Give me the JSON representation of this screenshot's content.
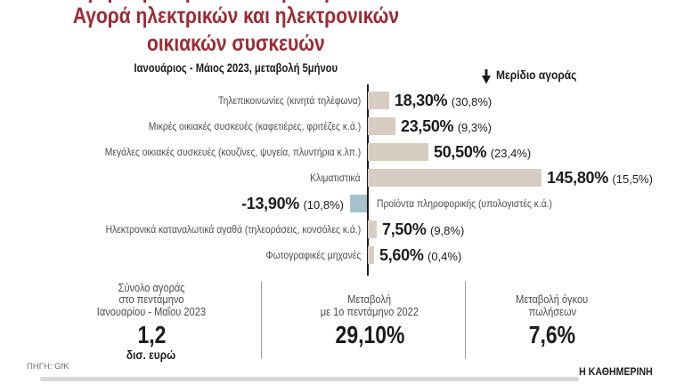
{
  "header": {
    "title_line1": "Αγορά ηλεκτρικών και ηλεκτρονικών",
    "title_line2": "οικιακών συσκευών",
    "subtitle": "Ιανουάριος - Μάιος 2023, μεταβολή 5μήνου",
    "legend_note": "Μερίδιο αγοράς"
  },
  "colors": {
    "title_red": "#9c2a32",
    "bar_positive": "#d7cdc2",
    "bar_negative": "#a6c2cc",
    "label_gray": "#4c4c4e",
    "footer_bar_gray": "#d8d8d8"
  },
  "chart_data": {
    "type": "bar",
    "orientation": "horizontal",
    "title": "Αγορά ηλεκτρικών και ηλεκτρονικών οικιακών συσκευών",
    "subtitle": "Ιανουάριος - Μάιος 2023, μεταβολή 5μήνου",
    "legend_position": "top-right",
    "xlim": [
      -20,
      160
    ],
    "grid": false,
    "categories": [
      "Τηλεπικοινωνίες (κινητά τηλέφωνα)",
      "Μικρές οικιακές συσκευές (καφετιέρες, φριτέζες κ.ά.)",
      "Μεγάλες οικιακές συσκευές (κουζίνες, ψυγεία, πλυντήρια κ.λπ.)",
      "Κλιματιστικά",
      "Προϊόντα πληροφορικής (υπολογιστές κ.ά.)",
      "Ηλεκτρονικά καταναλωτικά αγαθά (τηλεοράσεις, κονσόλες κ.ά.)",
      "Φωτογραφικές μηχανές"
    ],
    "series": [
      {
        "name": "Μεταβολή 5μήνου",
        "values": [
          18.3,
          23.5,
          50.5,
          145.8,
          -13.9,
          7.5,
          5.6
        ],
        "labels": [
          "18,30%",
          "23,50%",
          "50,50%",
          "145,80%",
          "-13,90%",
          "7,50%",
          "5,60%"
        ]
      },
      {
        "name": "Μερίδιο αγοράς",
        "values": [
          30.8,
          9.3,
          23.4,
          15.5,
          10.8,
          9.8,
          0.4
        ],
        "labels": [
          "(30,8%)",
          "(9,3%)",
          "(23,4%)",
          "(15,5%)",
          "(10,8%)",
          "(9,8%)",
          "(0,4%)"
        ]
      }
    ]
  },
  "stats": [
    {
      "lines": [
        "Σύνολο αγοράς",
        "στο πεντάμηνο",
        "Ιανουαρίου - Μαΐου 2023"
      ],
      "value": "1,2",
      "unit": "δισ. ευρώ"
    },
    {
      "lines": [
        "Μεταβολή",
        "με 1ο πεντάμηνο 2022"
      ],
      "value": "29,10%"
    },
    {
      "lines": [
        "Μεταβολή όγκου",
        "πωλήσεων"
      ],
      "value": "7,6%"
    }
  ],
  "footer": {
    "source": "ΠΗΓΗ: GfK",
    "brand": "Η ΚΑΘΗΜΕΡΙΝΗ"
  }
}
